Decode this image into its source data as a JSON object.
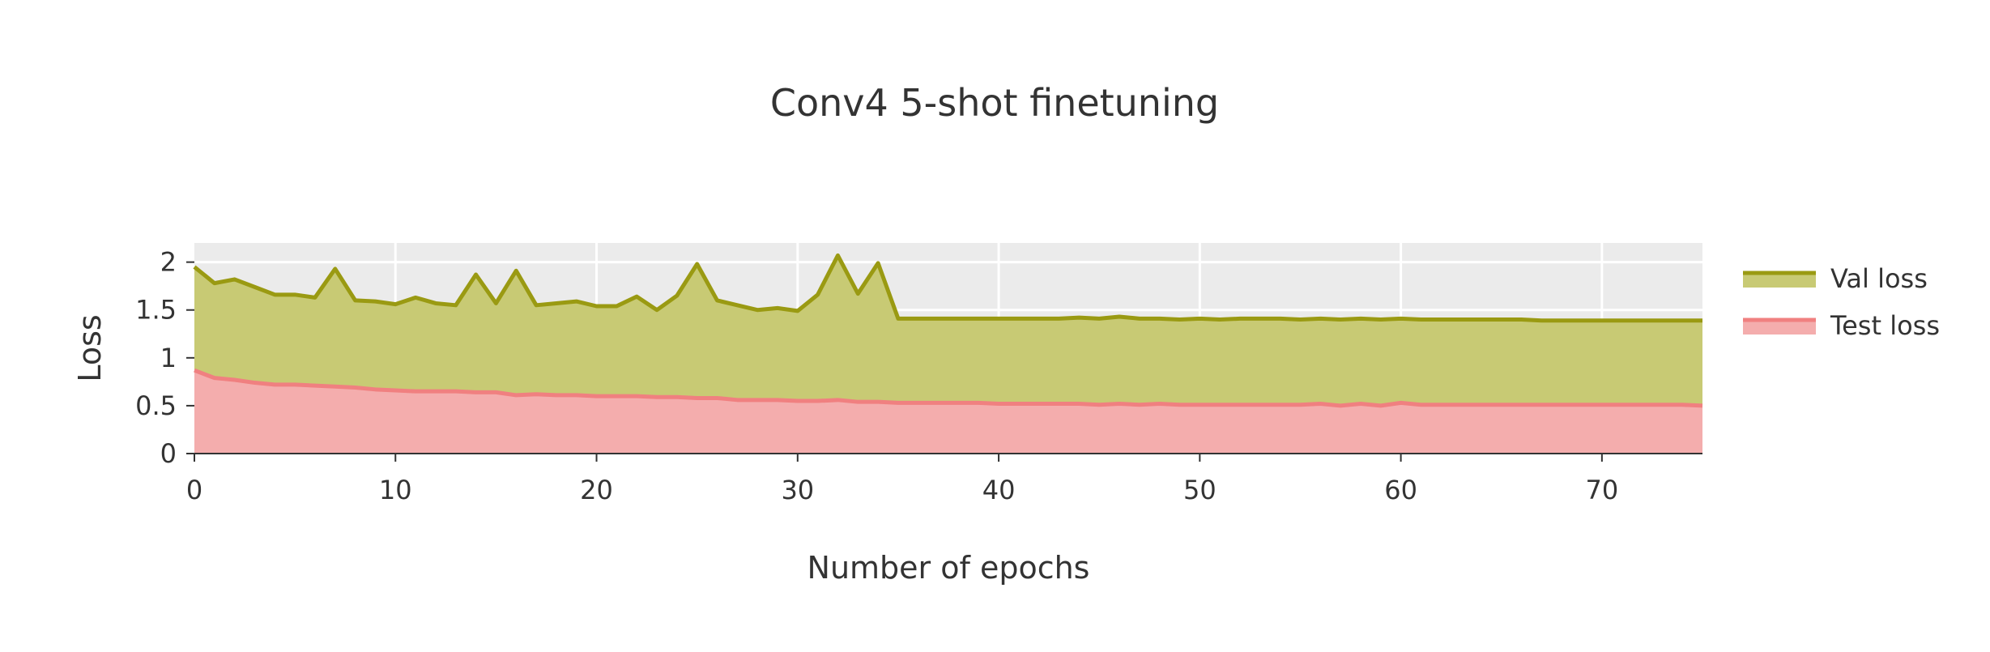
{
  "chart_data": {
    "type": "area",
    "title": "Conv4 5-shot finetuning",
    "xlabel": "Number of epochs",
    "ylabel": "Loss",
    "xlim": [
      0,
      75
    ],
    "ylim": [
      0,
      2.2
    ],
    "x_ticks": [
      0,
      10,
      20,
      30,
      40,
      50,
      60,
      70
    ],
    "y_ticks": [
      0,
      0.5,
      1,
      1.5,
      2
    ],
    "y_tick_labels": [
      "0",
      "0.5",
      "1",
      "1.5",
      "2"
    ],
    "grid": true,
    "legend_position": "top-right",
    "x": [
      0,
      1,
      2,
      3,
      4,
      5,
      6,
      7,
      8,
      9,
      10,
      11,
      12,
      13,
      14,
      15,
      16,
      17,
      18,
      19,
      20,
      21,
      22,
      23,
      24,
      25,
      26,
      27,
      28,
      29,
      30,
      31,
      32,
      33,
      34,
      35,
      36,
      37,
      38,
      39,
      40,
      41,
      42,
      43,
      44,
      45,
      46,
      47,
      48,
      49,
      50,
      51,
      52,
      53,
      54,
      55,
      56,
      57,
      58,
      59,
      60,
      61,
      62,
      63,
      64,
      65,
      66,
      67,
      68,
      69,
      70,
      71,
      72,
      73,
      74,
      75
    ],
    "series": [
      {
        "name": "Val loss",
        "color": "#9a9a12",
        "fill": "#c8ca74",
        "values": [
          1.95,
          1.78,
          1.82,
          1.74,
          1.66,
          1.66,
          1.63,
          1.93,
          1.6,
          1.59,
          1.56,
          1.63,
          1.57,
          1.55,
          1.87,
          1.57,
          1.91,
          1.55,
          1.57,
          1.59,
          1.54,
          1.54,
          1.64,
          1.5,
          1.65,
          1.98,
          1.6,
          1.55,
          1.5,
          1.52,
          1.49,
          1.66,
          2.07,
          1.67,
          1.99,
          1.41,
          1.41,
          1.41,
          1.41,
          1.41,
          1.41,
          1.41,
          1.41,
          1.41,
          1.42,
          1.41,
          1.43,
          1.41,
          1.41,
          1.4,
          1.41,
          1.4,
          1.41,
          1.41,
          1.41,
          1.4,
          1.41,
          1.4,
          1.41,
          1.4,
          1.41,
          1.4,
          1.4,
          1.4,
          1.4,
          1.4,
          1.4,
          1.39,
          1.39,
          1.39,
          1.39,
          1.39,
          1.39,
          1.39,
          1.39,
          1.39
        ]
      },
      {
        "name": "Test loss",
        "color": "#f08080",
        "fill": "#f4adad",
        "values": [
          0.87,
          0.79,
          0.77,
          0.74,
          0.72,
          0.72,
          0.71,
          0.7,
          0.69,
          0.67,
          0.66,
          0.65,
          0.65,
          0.65,
          0.64,
          0.64,
          0.61,
          0.62,
          0.61,
          0.61,
          0.6,
          0.6,
          0.6,
          0.59,
          0.59,
          0.58,
          0.58,
          0.56,
          0.56,
          0.56,
          0.55,
          0.55,
          0.56,
          0.54,
          0.54,
          0.53,
          0.53,
          0.53,
          0.53,
          0.53,
          0.52,
          0.52,
          0.52,
          0.52,
          0.52,
          0.51,
          0.52,
          0.51,
          0.52,
          0.51,
          0.51,
          0.51,
          0.51,
          0.51,
          0.51,
          0.51,
          0.52,
          0.5,
          0.52,
          0.5,
          0.53,
          0.51,
          0.51,
          0.51,
          0.51,
          0.51,
          0.51,
          0.51,
          0.51,
          0.51,
          0.51,
          0.51,
          0.51,
          0.51,
          0.51,
          0.5
        ]
      }
    ]
  }
}
